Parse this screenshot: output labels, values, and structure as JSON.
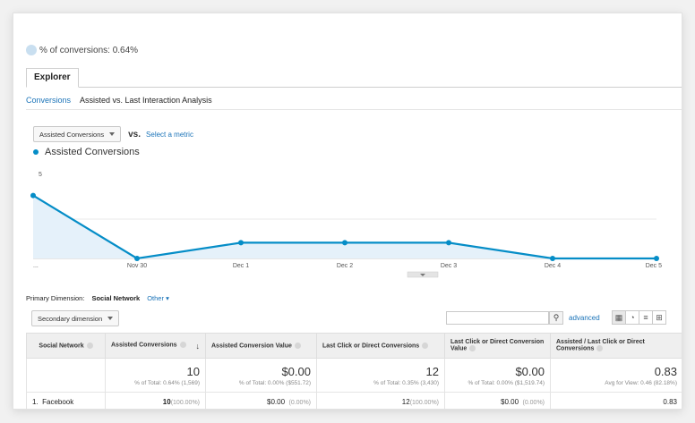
{
  "summary": {
    "conversions_label": "% of conversions: 0.64%"
  },
  "tabs": {
    "explorer": "Explorer"
  },
  "subnav": {
    "conversions": "Conversions",
    "analysis": "Assisted vs. Last Interaction Analysis"
  },
  "metric": {
    "selected": "Assisted Conversions",
    "vs": "vs.",
    "select_metric": "Select a metric"
  },
  "colors": {
    "series": "#058dc7",
    "fill": "#e5f1fa"
  },
  "chart_data": {
    "type": "area",
    "x": [
      "...",
      "Nov 30",
      "Dec 1",
      "Dec 2",
      "Dec 3",
      "Dec 4",
      "Dec 5"
    ],
    "series": [
      {
        "name": "Assisted Conversions",
        "values": [
          4,
          0,
          1,
          1,
          1,
          0,
          0
        ]
      }
    ],
    "yticks": [
      "5",
      "2.5"
    ],
    "ylim": [
      0,
      5
    ],
    "legend": "top-left"
  },
  "dimension": {
    "label": "Primary Dimension:",
    "value": "Social Network",
    "other": "Other"
  },
  "controls": {
    "secondary": "Secondary dimension",
    "advanced": "advanced"
  },
  "table": {
    "headers": {
      "network": "Social Network",
      "assisted_conv": "Assisted Conversions",
      "assisted_value": "Assisted Conversion Value",
      "last_click": "Last Click or Direct Conversions",
      "last_click_value": "Last Click or Direct Conversion Value",
      "ratio": "Assisted / Last Click or Direct Conversions"
    },
    "totals": {
      "assisted_conv": "10",
      "assisted_conv_sub": "% of Total: 0.64% (1,569)",
      "assisted_value": "$0.00",
      "assisted_value_sub": "% of Total: 0.00% ($551.72)",
      "last_click": "12",
      "last_click_sub": "% of Total: 0.35% (3,430)",
      "last_click_value": "$0.00",
      "last_click_value_sub": "% of Total: 0.00% ($1,519.74)",
      "ratio": "0.83",
      "ratio_sub": "Avg for View: 0.46 (82.18%)"
    },
    "rows": [
      {
        "index": "1.",
        "network": "Facebook",
        "assisted_conv": "10",
        "assisted_conv_pct": "(100.00%)",
        "assisted_value": "$0.00",
        "assisted_value_pct": "(0.00%)",
        "last_click": "12",
        "last_click_pct": "(100.00%)",
        "last_click_value": "$0.00",
        "last_click_value_pct": "(0.00%)",
        "ratio": "0.83"
      }
    ]
  }
}
